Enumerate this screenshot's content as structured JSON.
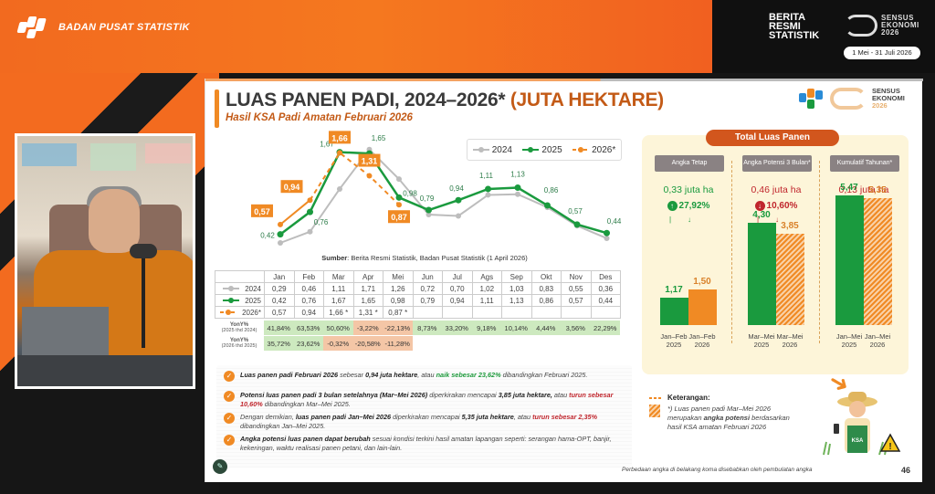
{
  "header": {
    "org_name": "BADAN PUSAT STATISTIK",
    "brs_lines": [
      "BERITA",
      "RESMI",
      "STATISTIK"
    ],
    "census_lines": [
      "SENSUS",
      "EKONOMI",
      "2026"
    ],
    "census_dates": "1 Mei - 31 Juli 2026"
  },
  "slide": {
    "title_main": "LUAS PANEN PADI, 2024–2026*",
    "title_unit": "(JUTA HEKTARE)",
    "subtitle": "Hasil KSA Padi Amatan Februari 2026",
    "logo_text": [
      "SENSUS",
      "EKONOMI",
      "2026"
    ],
    "source_label": "Sumber",
    "source_text": ": Berita Resmi Statistik, Badan Pusat Statistik (1 April 2026)",
    "legend": [
      "2024",
      "2025",
      "2026*"
    ],
    "page_number": "46",
    "footnote": "Perbedaan angka di belakang koma disebabkan oleh pembulatan angka"
  },
  "chart_data": [
    {
      "type": "line",
      "title": "Luas Panen Padi, 2024–2026* (Juta Hektare)",
      "categories": [
        "Jan",
        "Feb",
        "Mar",
        "Apr",
        "Mei",
        "Jun",
        "Jul",
        "Ags",
        "Sep",
        "Okt",
        "Nov",
        "Des"
      ],
      "series": [
        {
          "name": "2024",
          "color": "#bdbdbd",
          "values": [
            0.29,
            0.46,
            1.11,
            1.71,
            1.26,
            0.72,
            0.7,
            1.02,
            1.03,
            0.83,
            0.55,
            0.36
          ]
        },
        {
          "name": "2025",
          "color": "#1a9a3e",
          "values": [
            0.42,
            0.76,
            1.67,
            1.65,
            0.98,
            0.79,
            0.94,
            1.11,
            1.13,
            0.86,
            0.57,
            0.44
          ]
        },
        {
          "name": "2026*",
          "color": "#f08a24",
          "dashed_from_index": 2,
          "values": [
            0.57,
            0.94,
            1.66,
            1.31,
            0.87,
            null,
            null,
            null,
            null,
            null,
            null,
            null
          ]
        }
      ],
      "point_labels_2025": [
        "0,42",
        "0,76",
        "1,67",
        "1,65",
        "0,98",
        "0,79",
        "0,94",
        "1,11",
        "1,13",
        "0,86",
        "0,57",
        "0,44"
      ],
      "point_labels_2026": [
        "0,57",
        "0,94",
        "1,66",
        "1,31",
        "0,87"
      ],
      "legend_position": "top-right",
      "grid": false
    },
    {
      "type": "bar",
      "title": "Total Luas Panen",
      "groups": [
        {
          "name": "Angka Tetap",
          "categories": [
            "Jan–Feb 2025",
            "Jan–Feb 2026"
          ],
          "values": [
            1.17,
            1.5
          ]
        },
        {
          "name": "Angka Potensi 3 Bulan*",
          "categories": [
            "Mar–Mei 2025",
            "Mar–Mei 2026"
          ],
          "values": [
            4.3,
            3.85
          ]
        },
        {
          "name": "Kumulatif Tahunan*",
          "categories": [
            "Jan–Mei 2025",
            "Jan–Mei 2026"
          ],
          "values": [
            5.47,
            5.35
          ]
        }
      ]
    }
  ],
  "table": {
    "months": [
      "Jan",
      "Feb",
      "Mar",
      "Apr",
      "Mei",
      "Jun",
      "Jul",
      "Ags",
      "Sep",
      "Okt",
      "Nov",
      "Des"
    ],
    "rows": [
      {
        "label": "2024",
        "cells": [
          "0,29",
          "0,46",
          "1,11",
          "1,71",
          "1,26",
          "0,72",
          "0,70",
          "1,02",
          "1,03",
          "0,83",
          "0,55",
          "0,36"
        ]
      },
      {
        "label": "2025",
        "cells": [
          "0,42",
          "0,76",
          "1,67",
          "1,65",
          "0,98",
          "0,79",
          "0,94",
          "1,11",
          "1,13",
          "0,86",
          "0,57",
          "0,44"
        ]
      },
      {
        "label": "2026*",
        "cells": [
          "0,57",
          "0,94",
          "1,66 *",
          "1,31 *",
          "0,87 *",
          "",
          "",
          "",
          "",
          "",
          "",
          ""
        ]
      }
    ],
    "yoy": [
      {
        "label": "YonY%",
        "sublabel": "(2025 thd 2024)",
        "cells": [
          "41,84%",
          "63,53%",
          "50,60%",
          "-3,22%",
          "-22,13%",
          "8,73%",
          "33,20%",
          "9,18%",
          "10,14%",
          "4,44%",
          "3,56%",
          "22,29%"
        ]
      },
      {
        "label": "YonY%",
        "sublabel": "(2026 thd 2025)",
        "cells": [
          "35,72%",
          "23,62%",
          "-0,32%",
          "-20,58%",
          "-11,28%",
          "",
          "",
          "",
          "",
          "",
          "",
          ""
        ]
      }
    ]
  },
  "notes": [
    {
      "parts": [
        [
          "b",
          "Luas panen padi Februari 2026"
        ],
        [
          "t",
          " sebesar "
        ],
        [
          "b",
          "0,94 juta hektare"
        ],
        [
          "t",
          ", atau "
        ],
        [
          "g",
          "naik sebesar 23,62%"
        ],
        [
          "t",
          " dibandingkan Februari 2025."
        ]
      ]
    },
    {
      "parts": [
        [
          "b",
          "Potensi luas panen padi 3 bulan setelahnya (Mar–Mei 2026)"
        ],
        [
          "t",
          " diperkirakan mencapai "
        ],
        [
          "b",
          "3,85 juta hektare,"
        ],
        [
          "t",
          " atau "
        ],
        [
          "r",
          "turun sebesar 10,60%"
        ],
        [
          "t",
          " dibandingkan Mar–Mei 2025."
        ]
      ]
    },
    {
      "parts": [
        [
          "t",
          "Dengan demikian, "
        ],
        [
          "b",
          "luas panen padi Jan–Mei 2026"
        ],
        [
          "t",
          " diperkirakan mencapai "
        ],
        [
          "b",
          "5,35 juta hektare"
        ],
        [
          "t",
          ", atau "
        ],
        [
          "r",
          "turun sebesar 2,35%"
        ],
        [
          "t",
          " dibandingkan Jan–Mei 2025."
        ]
      ]
    },
    {
      "parts": [
        [
          "b",
          "Angka potensi luas panen dapat berubah"
        ],
        [
          "t",
          " sesuai kondisi terkini hasil amatan lapangan seperti: serangan hama-OPT, banjir, kekeringan, waktu realisasi panen petani, dan lain-lain."
        ]
      ]
    }
  ],
  "panel": {
    "title": "Total Luas Panen",
    "headers": [
      "Angka Tetap",
      "Angka Potensi 3 Bulan*",
      "Kumulatif Tahunan*"
    ],
    "diffs": [
      "0,33 juta ha",
      "0,46 juta ha",
      "0,13 juta ha"
    ],
    "pcts": [
      "27,92%",
      "10,60%",
      "2,35%"
    ],
    "directions": [
      "up",
      "down",
      "down"
    ],
    "bar_values": [
      [
        "1,17",
        "1,50"
      ],
      [
        "4,30",
        "3,85"
      ],
      [
        "5,47",
        "5,35"
      ]
    ],
    "bar_labels": [
      [
        "Jan–Feb 2025",
        "Jan–Feb 2026"
      ],
      [
        "Mar–Mei 2025",
        "Mar–Mei 2026"
      ],
      [
        "Jan–Mei 2025",
        "Jan–Mei 2026"
      ]
    ],
    "colors": {
      "green": "#1a9a3e",
      "orange": "#f08a24",
      "red": "#c0262d"
    }
  },
  "keterangan": {
    "title": "Keterangan",
    "text_pre": "*) Luas panen padi Mar–Mei 2026 merupakan ",
    "text_bold": "angka potensi",
    "text_post": " berdasarkan hasil KSA amatan Februari 2026",
    "badge": "KSA"
  }
}
